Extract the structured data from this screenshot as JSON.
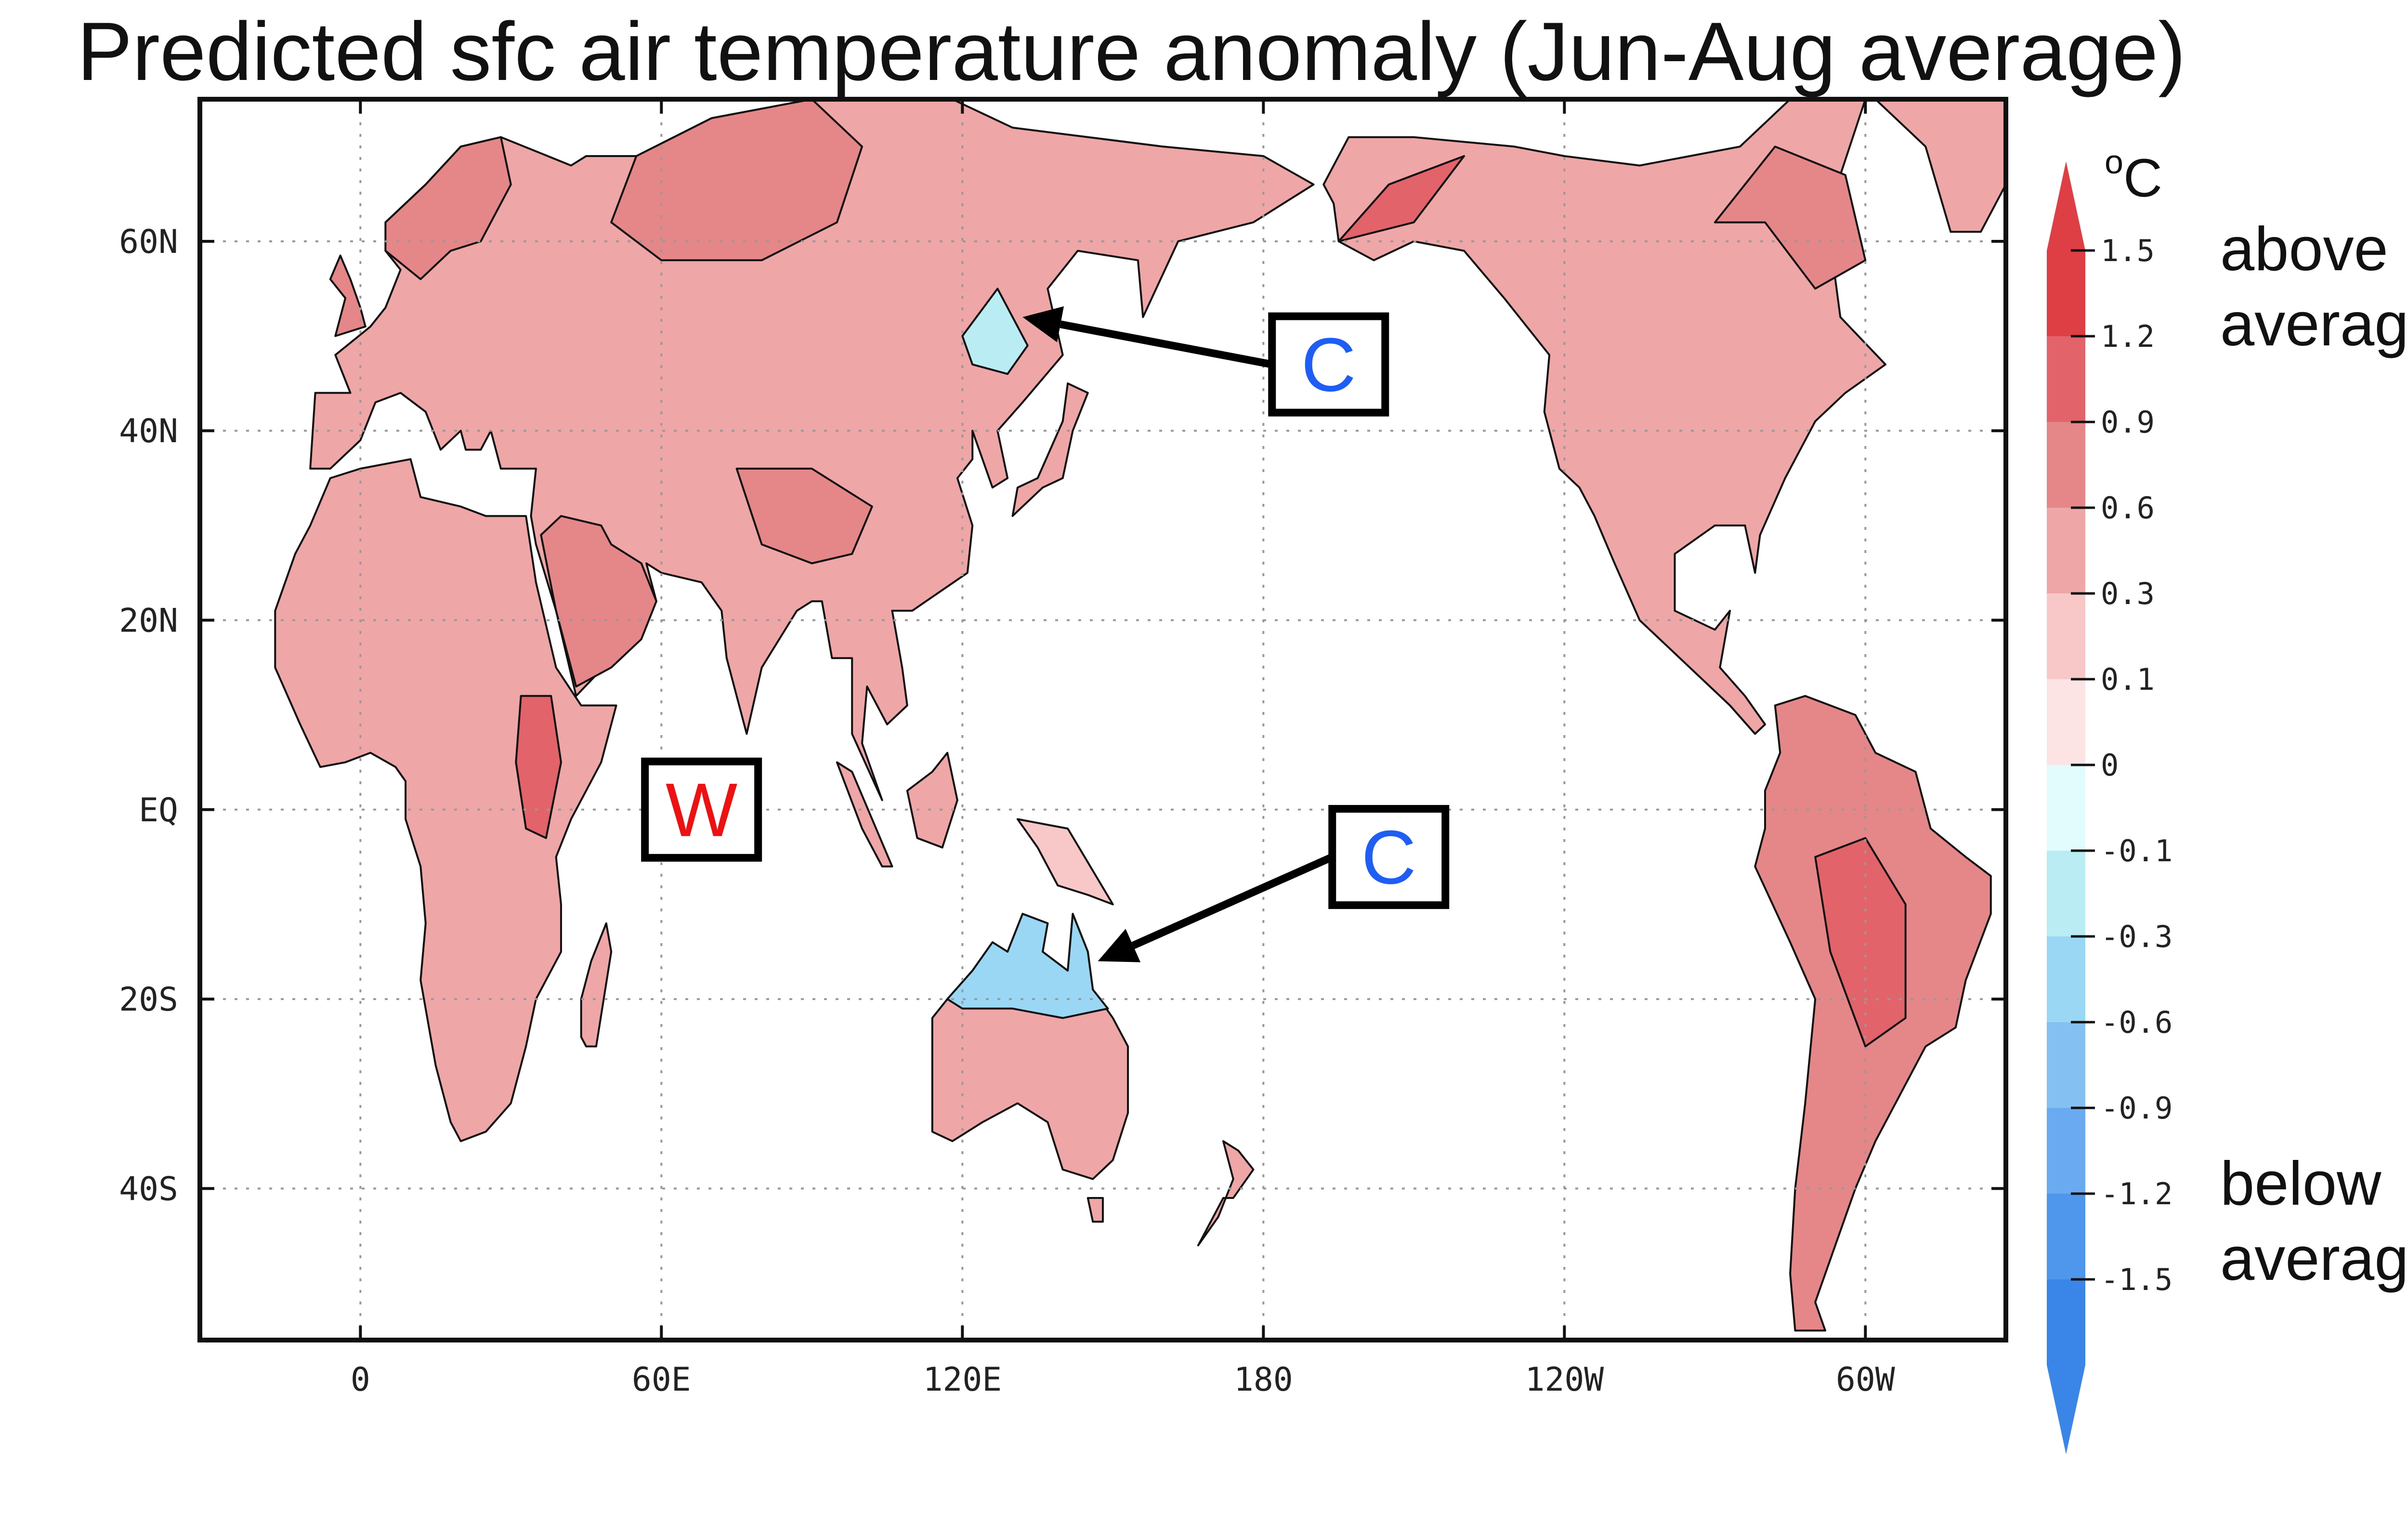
{
  "title": "Predicted sfc air temperature anomaly (Jun-Aug average)",
  "axes": {
    "x_ticks": [
      "0",
      "60E",
      "120E",
      "180",
      "120W",
      "60W"
    ],
    "y_ticks": [
      "60N",
      "40N",
      "20N",
      "EQ",
      "20S",
      "40S"
    ],
    "lon_range": [
      -32,
      328
    ],
    "lat_range": [
      -56,
      75
    ],
    "grid": true
  },
  "colorbar": {
    "unit_prefix": "o",
    "unit": "C",
    "levels": [
      "1.5",
      "1.2",
      "0.9",
      "0.6",
      "0.3",
      "0.1",
      "0",
      "-0.1",
      "-0.3",
      "-0.6",
      "-0.9",
      "-1.2",
      "-1.5"
    ],
    "colors": [
      "#de3f44",
      "#e2646a",
      "#e58688",
      "#efa6a7",
      "#f8c8c8",
      "#fce4e4",
      "#e2fbfd",
      "#b9ecf3",
      "#99d7f4",
      "#85c0f2",
      "#6aaaf0",
      "#4f97ec",
      "#3a86e8"
    ],
    "top_label": [
      "above",
      "average"
    ],
    "bottom_label": [
      "below",
      "average"
    ]
  },
  "annotations": [
    {
      "text": "C",
      "color": "#1e5ef5",
      "box_lat": 47,
      "box_lon": 193,
      "arrow_lat": 52,
      "arrow_lon": 132
    },
    {
      "text": "W",
      "color": "#ee1111",
      "box_lat": 0,
      "box_lon": 68
    },
    {
      "text": "C",
      "color": "#1e5ef5",
      "box_lat": -5,
      "box_lon": 205,
      "arrow_lat": -16,
      "arrow_lon": 147
    }
  ],
  "colors": {
    "frame": "#111111",
    "grid": "#999999",
    "land_warm": "#e58688",
    "land_strong": "#de3f44",
    "land_cool": "#99d7f4"
  },
  "chart_data": {
    "type": "heatmap",
    "title": "Predicted sfc air temperature anomaly (Jun-Aug average)",
    "variable": "surface air temperature anomaly",
    "unit": "oC",
    "period": "Jun-Aug average",
    "color_levels": [
      -1.5,
      -1.2,
      -0.9,
      -0.6,
      -0.3,
      -0.1,
      0,
      0.1,
      0.3,
      0.6,
      0.9,
      1.2,
      1.5
    ],
    "regions": [
      {
        "name": "Eurasia",
        "anomaly_range": [
          0.3,
          1.2
        ]
      },
      {
        "name": "Northeast China",
        "anomaly_range": [
          -0.3,
          0
        ],
        "label": "C"
      },
      {
        "name": "Indian Ocean",
        "anomaly_range": [
          0.1,
          0.9
        ],
        "label": "W"
      },
      {
        "name": "Northern Australia",
        "anomaly_range": [
          -0.9,
          -0.1
        ],
        "label": "C"
      },
      {
        "name": "Africa",
        "anomaly_range": [
          0.6,
          1.2
        ]
      },
      {
        "name": "North America",
        "anomaly_range": [
          0.1,
          1.2
        ]
      },
      {
        "name": "South America",
        "anomaly_range": [
          0.6,
          1.2
        ]
      }
    ]
  }
}
